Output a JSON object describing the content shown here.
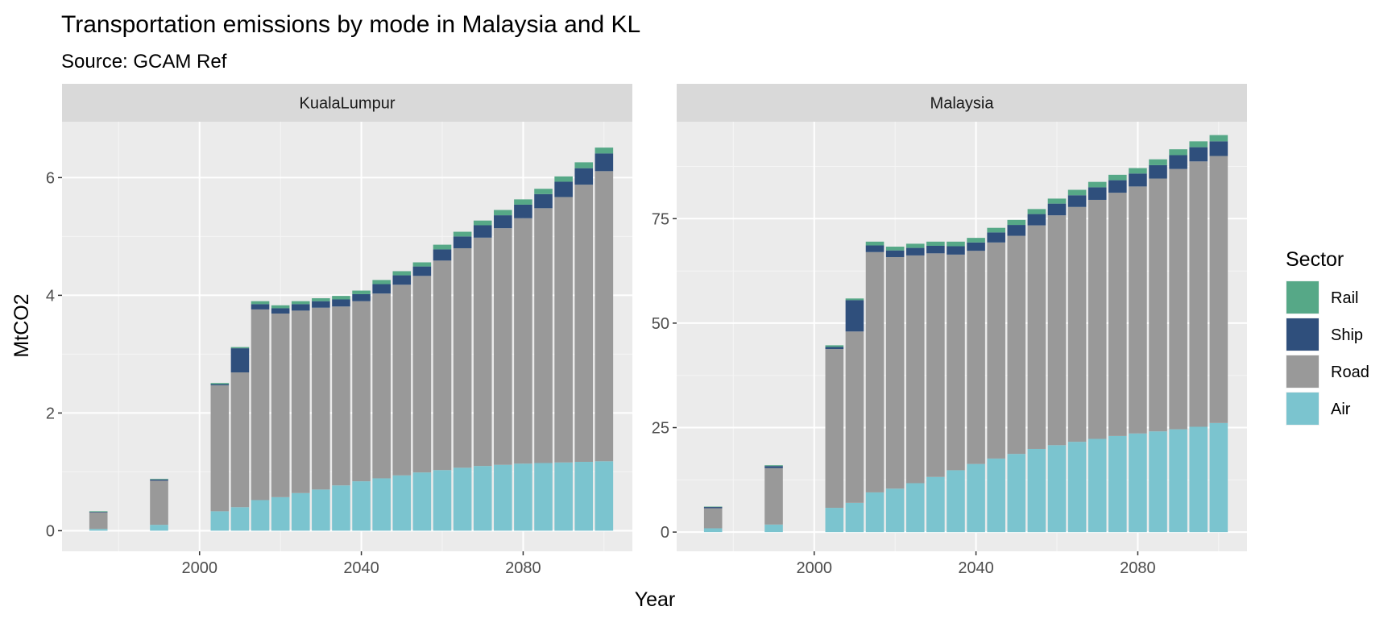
{
  "chart_data": {
    "type": "bar",
    "stacked": true,
    "title": "Transportation emissions by mode in Malaysia and KL",
    "subtitle": "Source: GCAM Ref",
    "xlabel": "Year",
    "ylabel": "MtCO2",
    "grid": true,
    "legend": {
      "title": "Sector",
      "placement": "right",
      "entries": [
        "Rail",
        "Ship",
        "Road",
        "Air"
      ]
    },
    "colors": {
      "Rail": "#56a887",
      "Ship": "#2f4f7c",
      "Road": "#999999",
      "Air": "#7bc4cf"
    },
    "x_ticks": [
      "2000",
      "2040",
      "2080"
    ],
    "xlim": [
      1966,
      2107
    ],
    "stack_order": [
      "Air",
      "Road",
      "Ship",
      "Rail"
    ],
    "panels": [
      {
        "name": "KualaLumpur",
        "ylim": [
          -0.35,
          6.95
        ],
        "y_ticks": [
          "0",
          "2",
          "4",
          "6"
        ],
        "y_tick_values": [
          0,
          2,
          4,
          6
        ],
        "years": [
          1975,
          1990,
          2005,
          2010,
          2015,
          2020,
          2025,
          2030,
          2035,
          2040,
          2045,
          2050,
          2055,
          2060,
          2065,
          2070,
          2075,
          2080,
          2085,
          2090,
          2095,
          2100
        ],
        "series": [
          {
            "name": "Air",
            "values": [
              0.03,
              0.1,
              0.33,
              0.4,
              0.52,
              0.57,
              0.64,
              0.7,
              0.77,
              0.84,
              0.89,
              0.94,
              0.99,
              1.03,
              1.07,
              1.1,
              1.12,
              1.14,
              1.15,
              1.16,
              1.17,
              1.18
            ]
          },
          {
            "name": "Road",
            "values": [
              0.28,
              0.75,
              2.14,
              2.29,
              3.24,
              3.12,
              3.1,
              3.09,
              3.04,
              3.06,
              3.14,
              3.24,
              3.34,
              3.56,
              3.73,
              3.88,
              4.02,
              4.17,
              4.33,
              4.51,
              4.71,
              4.93
            ]
          },
          {
            "name": "Ship",
            "values": [
              0.01,
              0.02,
              0.02,
              0.41,
              0.09,
              0.09,
              0.11,
              0.11,
              0.12,
              0.12,
              0.16,
              0.16,
              0.16,
              0.19,
              0.2,
              0.21,
              0.22,
              0.23,
              0.24,
              0.26,
              0.28,
              0.3
            ]
          },
          {
            "name": "Rail",
            "values": [
              0.01,
              0.01,
              0.02,
              0.02,
              0.05,
              0.05,
              0.05,
              0.05,
              0.06,
              0.06,
              0.07,
              0.07,
              0.07,
              0.08,
              0.08,
              0.08,
              0.09,
              0.09,
              0.09,
              0.09,
              0.1,
              0.1
            ]
          }
        ]
      },
      {
        "name": "Malaysia",
        "ylim": [
          -4.6,
          98.2
        ],
        "y_ticks": [
          "0",
          "25",
          "50",
          "75"
        ],
        "y_tick_values": [
          0,
          25,
          50,
          75
        ],
        "years": [
          1975,
          1990,
          2005,
          2010,
          2015,
          2020,
          2025,
          2030,
          2035,
          2040,
          2045,
          2050,
          2055,
          2060,
          2065,
          2070,
          2075,
          2080,
          2085,
          2090,
          2095,
          2100
        ],
        "series": [
          {
            "name": "Air",
            "values": [
              0.9,
              1.8,
              5.8,
              7.0,
              9.5,
              10.4,
              11.7,
              13.2,
              14.8,
              16.3,
              17.6,
              18.7,
              19.9,
              20.8,
              21.6,
              22.3,
              23.0,
              23.6,
              24.1,
              24.6,
              25.2,
              26.1
            ]
          },
          {
            "name": "Road",
            "values": [
              4.8,
              13.5,
              38.0,
              41.0,
              57.5,
              55.4,
              54.5,
              53.5,
              51.6,
              51.0,
              51.7,
              52.2,
              53.5,
              55.0,
              56.2,
              57.2,
              58.2,
              59.1,
              60.5,
              62.3,
              63.5,
              63.9
            ]
          },
          {
            "name": "Ship",
            "values": [
              0.3,
              0.5,
              0.5,
              7.5,
              1.6,
              1.6,
              1.8,
              1.8,
              2.0,
              2.0,
              2.4,
              2.6,
              2.7,
              2.8,
              2.8,
              3.0,
              3.0,
              3.1,
              3.2,
              3.3,
              3.4,
              3.5
            ]
          },
          {
            "name": "Rail",
            "values": [
              0.1,
              0.2,
              0.4,
              0.4,
              0.9,
              0.9,
              1.0,
              1.0,
              1.1,
              1.1,
              1.1,
              1.2,
              1.2,
              1.2,
              1.3,
              1.3,
              1.3,
              1.3,
              1.4,
              1.4,
              1.4,
              1.5
            ]
          }
        ]
      }
    ]
  }
}
